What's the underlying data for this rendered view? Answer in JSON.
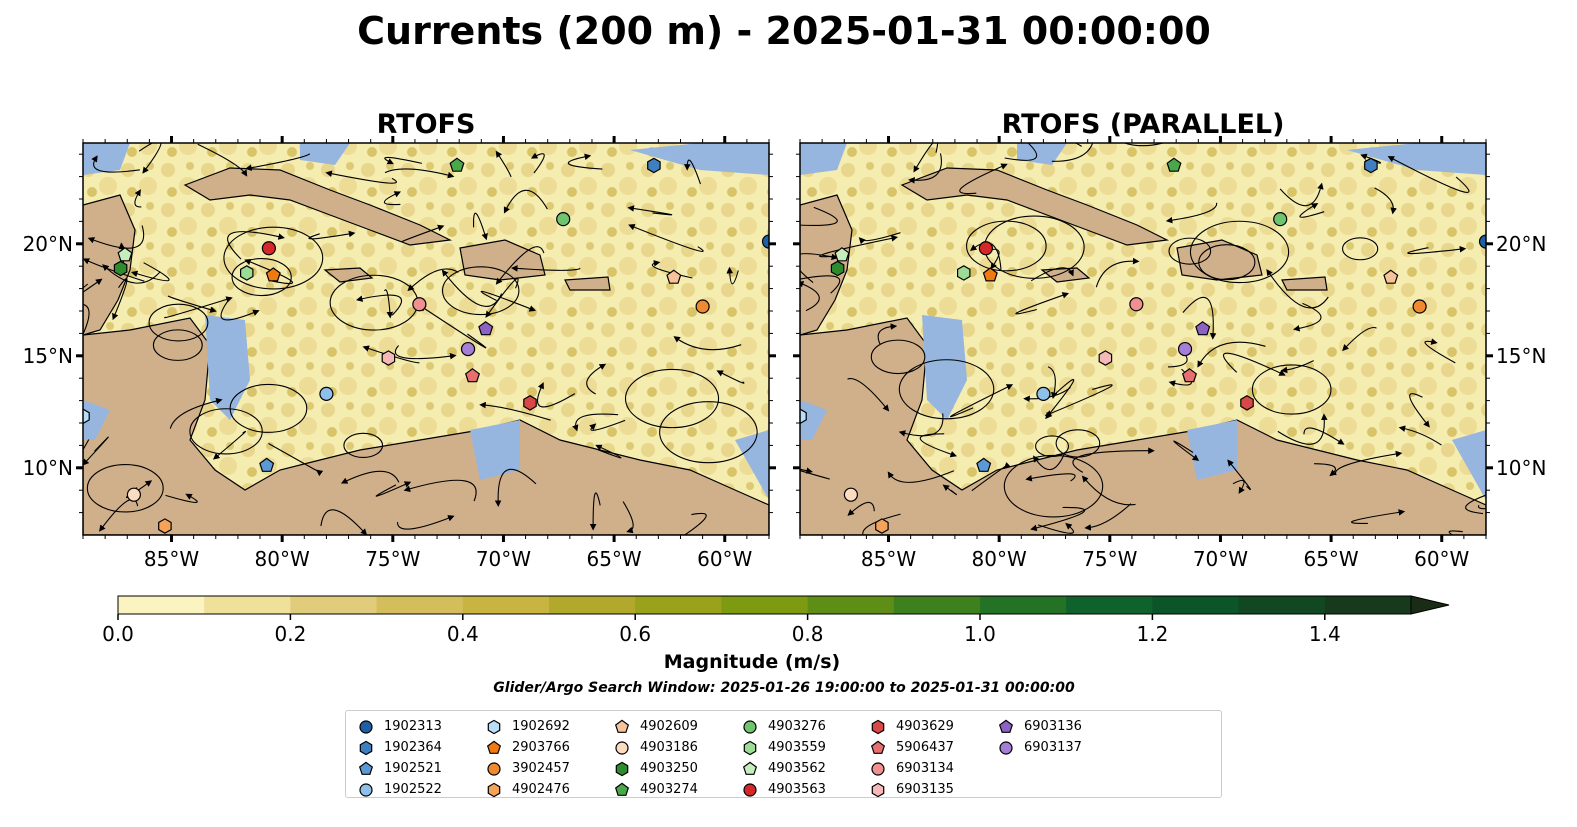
{
  "figure": {
    "title": "Currents (200 m) - 2025-01-31 00:00:00",
    "search_window": "Glider/Argo Search Window: 2025-01-26 19:00:00 to 2025-01-31 00:00:00"
  },
  "panels": [
    {
      "title": "RTOFS"
    },
    {
      "title": "RTOFS (PARALLEL)"
    }
  ],
  "axes": {
    "lon_ticks": [
      "85°W",
      "80°W",
      "75°W",
      "70°W",
      "65°W",
      "60°W"
    ],
    "lon_values": [
      -85,
      -80,
      -75,
      -70,
      -65,
      -60
    ],
    "lat_ticks": [
      "20°N",
      "15°N",
      "10°N"
    ],
    "lat_values": [
      20,
      15,
      10
    ],
    "lon_range": [
      -89,
      -58
    ],
    "lat_range": [
      7,
      24.5
    ]
  },
  "colorbar": {
    "label": "Magnitude (m/s)",
    "ticks": [
      "0.0",
      "0.2",
      "0.4",
      "0.6",
      "0.8",
      "1.0",
      "1.2",
      "1.4"
    ],
    "tick_values": [
      0,
      0.2,
      0.4,
      0.6,
      0.8,
      1.0,
      1.2,
      1.4
    ],
    "range": [
      0,
      1.5
    ],
    "extend": "max",
    "colors": [
      "#fbf4c0",
      "#efe09a",
      "#e0cc7a",
      "#d4be5c",
      "#c8b440",
      "#b2a82c",
      "#9aa21c",
      "#7d9a10",
      "#5e8e16",
      "#3f801e",
      "#247226",
      "#0f622c",
      "#0b5528",
      "#114822",
      "#173a1c",
      "#1a2c16"
    ]
  },
  "colors": {
    "land": "#cfb08a",
    "shallow_water": "#97b6df",
    "low_speed": "#f7f0b4"
  },
  "legend": [
    {
      "id": "1902313",
      "marker": "circle",
      "color": "#1f5fa6"
    },
    {
      "id": "1902364",
      "marker": "hexagon",
      "color": "#3f7fc0"
    },
    {
      "id": "1902521",
      "marker": "pentagon",
      "color": "#5a98d6"
    },
    {
      "id": "1902522",
      "marker": "circle",
      "color": "#8ec0ea"
    },
    {
      "id": "1902692",
      "marker": "hexagon",
      "color": "#b9def7"
    },
    {
      "id": "2903766",
      "marker": "pentagon",
      "color": "#f07a10"
    },
    {
      "id": "3902457",
      "marker": "circle",
      "color": "#f08a30"
    },
    {
      "id": "4902476",
      "marker": "hexagon",
      "color": "#f5a35a"
    },
    {
      "id": "4902609",
      "marker": "pentagon",
      "color": "#f8c398"
    },
    {
      "id": "4903186",
      "marker": "circle",
      "color": "#fcdcc0"
    },
    {
      "id": "4903250",
      "marker": "hexagon",
      "color": "#2e8b2e"
    },
    {
      "id": "4903274",
      "marker": "pentagon",
      "color": "#4aa84a"
    },
    {
      "id": "4903276",
      "marker": "circle",
      "color": "#6fc46f"
    },
    {
      "id": "4903559",
      "marker": "hexagon",
      "color": "#9cdc94"
    },
    {
      "id": "4903562",
      "marker": "pentagon",
      "color": "#c6eebc"
    },
    {
      "id": "4903563",
      "marker": "circle",
      "color": "#d62828"
    },
    {
      "id": "4903629",
      "marker": "hexagon",
      "color": "#d94848"
    },
    {
      "id": "5906437",
      "marker": "pentagon",
      "color": "#e76f6f"
    },
    {
      "id": "6903134",
      "marker": "circle",
      "color": "#f09090"
    },
    {
      "id": "6903135",
      "marker": "hexagon",
      "color": "#f7b8b8"
    },
    {
      "id": "6903136",
      "marker": "pentagon",
      "color": "#8d62c4"
    },
    {
      "id": "6903137",
      "marker": "circle",
      "color": "#a57fd6"
    }
  ],
  "floats": [
    {
      "id": "1902313",
      "lon": -58.0,
      "lat": 20.1
    },
    {
      "id": "1902364",
      "lon": -63.2,
      "lat": 23.5
    },
    {
      "id": "1902521",
      "lon": -80.7,
      "lat": 10.1
    },
    {
      "id": "1902522",
      "lon": -78.0,
      "lat": 13.3
    },
    {
      "id": "1902692",
      "lon": -89.0,
      "lat": 12.3
    },
    {
      "id": "2903766",
      "lon": -80.4,
      "lat": 18.6
    },
    {
      "id": "3902457",
      "lon": -61.0,
      "lat": 17.2
    },
    {
      "id": "4902609",
      "lon": -62.3,
      "lat": 18.5
    },
    {
      "id": "4903186",
      "lon": -86.7,
      "lat": 8.8
    },
    {
      "id": "4903250",
      "lon": -87.3,
      "lat": 18.9
    },
    {
      "id": "4903274",
      "lon": -72.1,
      "lat": 23.5
    },
    {
      "id": "4903276",
      "lon": -67.3,
      "lat": 21.1
    },
    {
      "id": "4903559",
      "lon": -81.6,
      "lat": 18.7
    },
    {
      "id": "4903562",
      "lon": -87.1,
      "lat": 19.5
    },
    {
      "id": "4903563",
      "lon": -80.6,
      "lat": 19.8
    },
    {
      "id": "4903629",
      "lon": -68.8,
      "lat": 12.9
    },
    {
      "id": "5906437",
      "lon": -71.4,
      "lat": 14.1
    },
    {
      "id": "6903134",
      "lon": -73.8,
      "lat": 17.3
    },
    {
      "id": "6903135",
      "lon": -75.2,
      "lat": 14.9
    },
    {
      "id": "6903136",
      "lon": -70.8,
      "lat": 16.2
    },
    {
      "id": "6903137",
      "lon": -71.6,
      "lat": 15.3
    },
    {
      "id": "4902476",
      "lon": -85.3,
      "lat": 7.4
    }
  ]
}
